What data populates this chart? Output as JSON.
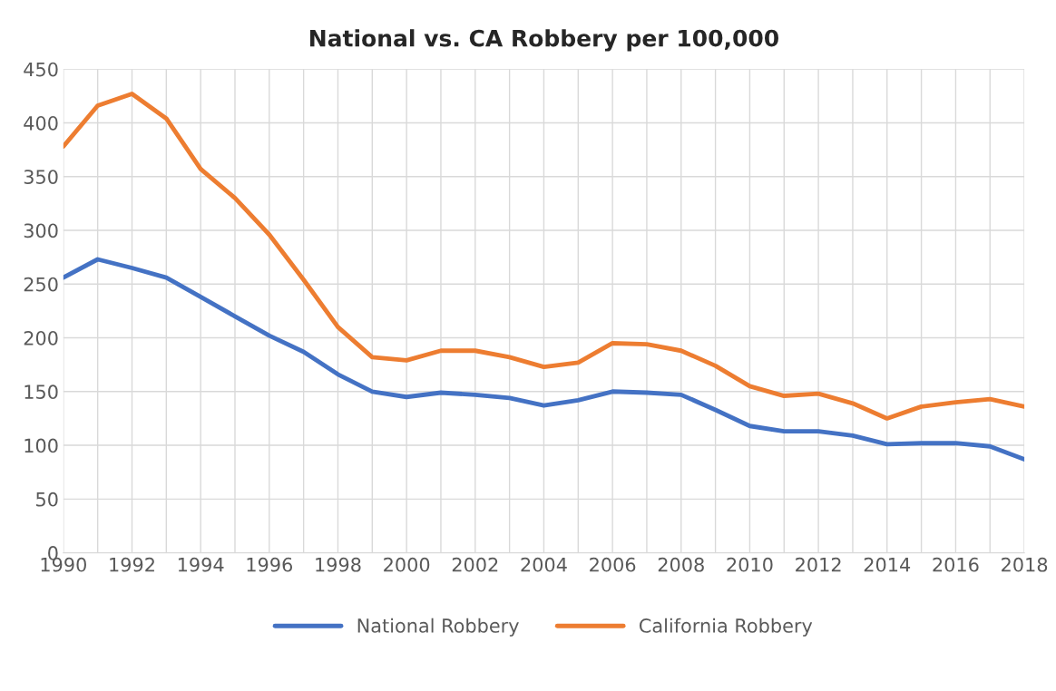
{
  "chart_data": {
    "type": "line",
    "title": "National vs. CA Robbery per 100,000",
    "categories": [
      "1990",
      null,
      "1992",
      null,
      "1994",
      null,
      "1996",
      null,
      "1998",
      null,
      "2000",
      null,
      "2002",
      null,
      "2004",
      null,
      "2006",
      null,
      "2008",
      null,
      "2010",
      null,
      "2012",
      null,
      "2014",
      null,
      "2016",
      null,
      "2018"
    ],
    "series": [
      {
        "name": "National Robbery",
        "color": "#4472c4",
        "values": [
          256,
          273,
          265,
          256,
          238,
          220,
          202,
          187,
          166,
          150,
          145,
          149,
          147,
          144,
          137,
          142,
          150,
          149,
          147,
          133,
          118,
          113,
          113,
          109,
          101,
          102,
          102,
          99,
          87
        ]
      },
      {
        "name": "California Robbery",
        "color": "#ed7d31",
        "values": [
          378,
          416,
          427,
          404,
          357,
          330,
          296,
          254,
          210,
          182,
          179,
          188,
          188,
          182,
          173,
          177,
          195,
          194,
          188,
          174,
          155,
          146,
          148,
          139,
          125,
          136,
          140,
          143,
          136
        ]
      }
    ],
    "ylim": [
      0,
      450
    ],
    "yticks": [
      0,
      50,
      100,
      150,
      200,
      250,
      300,
      350,
      400,
      450
    ],
    "grid": true,
    "legend": "bottom",
    "marker": "none",
    "line_style": "solid"
  }
}
